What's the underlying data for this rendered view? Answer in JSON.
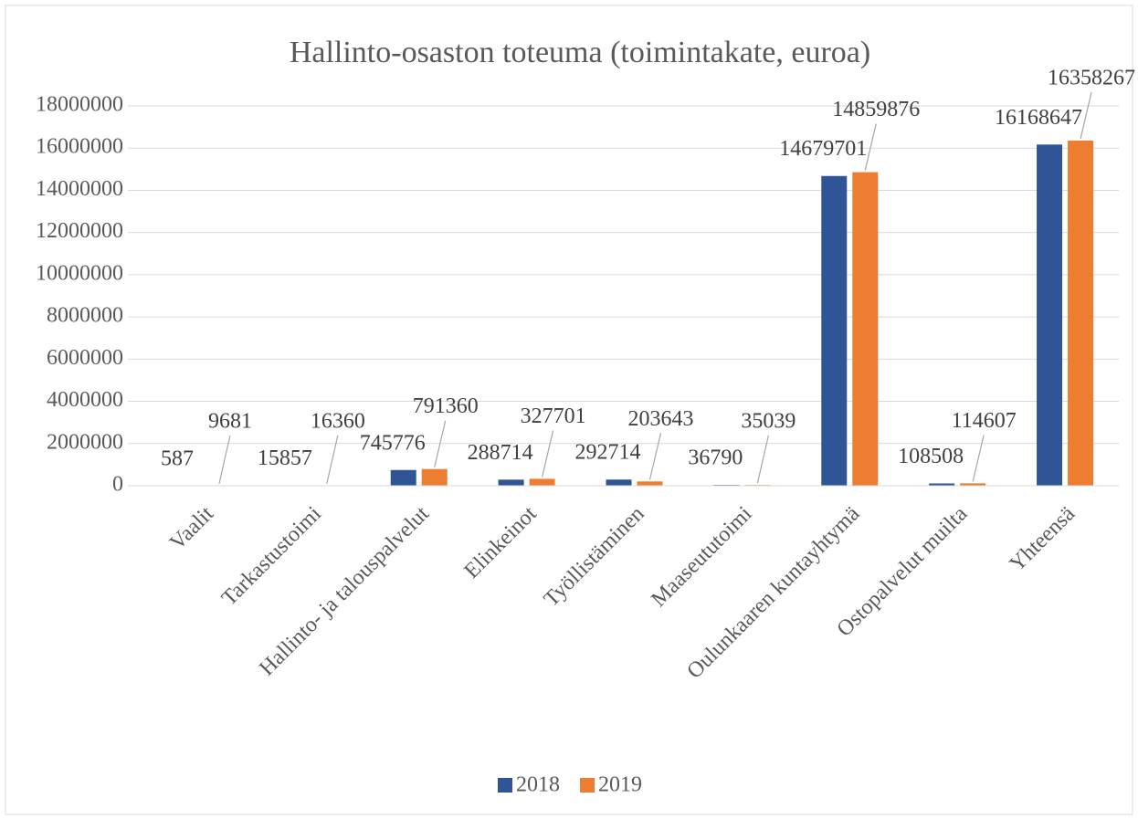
{
  "chart_data": {
    "type": "bar",
    "title": "Hallinto-osaston toteuma (toimintakate, euroa)",
    "categories": [
      "Vaalit",
      "Tarkastustoimi",
      "Hallinto- ja talouspalvelut",
      "Elinkeinot",
      "Työllistäminen",
      "Maaseututoimi",
      "Oulunkaaren kuntayhtymä",
      "Ostopalvelut muilta",
      "Yhteensä"
    ],
    "series": [
      {
        "name": "2018",
        "color": "#2f5597",
        "values": [
          587,
          15857,
          745776,
          288714,
          292714,
          36790,
          14679701,
          108508,
          16168647
        ]
      },
      {
        "name": "2019",
        "color": "#ed7d31",
        "values": [
          9681,
          16360,
          791360,
          327701,
          203643,
          35039,
          14859876,
          114607,
          16358267
        ]
      }
    ],
    "ylim": [
      0,
      18000000
    ],
    "yticks": [
      0,
      2000000,
      4000000,
      6000000,
      8000000,
      10000000,
      12000000,
      14000000,
      16000000,
      18000000
    ],
    "grid": true,
    "legend": "bottom"
  }
}
